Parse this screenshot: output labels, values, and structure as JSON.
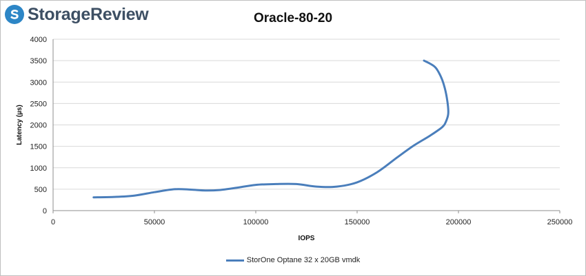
{
  "brand": {
    "name": "StorageReview",
    "icon": "storagereview-logo-icon",
    "colors": {
      "icon": "#2d86c6",
      "text": "#3d4f63"
    }
  },
  "chart_data": {
    "type": "line",
    "title": "Oracle-80-20",
    "xlabel": "IOPS",
    "ylabel": "Latency (µs)",
    "xlim": [
      0,
      250000
    ],
    "ylim": [
      0,
      4000
    ],
    "xticks": [
      0,
      50000,
      100000,
      150000,
      200000,
      250000
    ],
    "yticks": [
      0,
      500,
      1000,
      1500,
      2000,
      2500,
      3000,
      3500,
      4000
    ],
    "grid": "horizontal",
    "legend_position": "bottom",
    "series": [
      {
        "name": "StorOne Optane 32 x 20GB vmdk",
        "color": "#4a7ebb",
        "x": [
          20000,
          30000,
          40000,
          50000,
          60000,
          68000,
          75000,
          82000,
          90000,
          100000,
          110000,
          120000,
          130000,
          140000,
          150000,
          160000,
          170000,
          178000,
          186000,
          192000,
          194000,
          195000,
          194000,
          192000,
          189000,
          186000,
          183000
        ],
        "y": [
          310,
          320,
          350,
          430,
          500,
          490,
          470,
          480,
          530,
          600,
          620,
          620,
          560,
          560,
          660,
          900,
          1250,
          1520,
          1750,
          1950,
          2100,
          2300,
          2700,
          3050,
          3320,
          3430,
          3500
        ]
      }
    ]
  }
}
